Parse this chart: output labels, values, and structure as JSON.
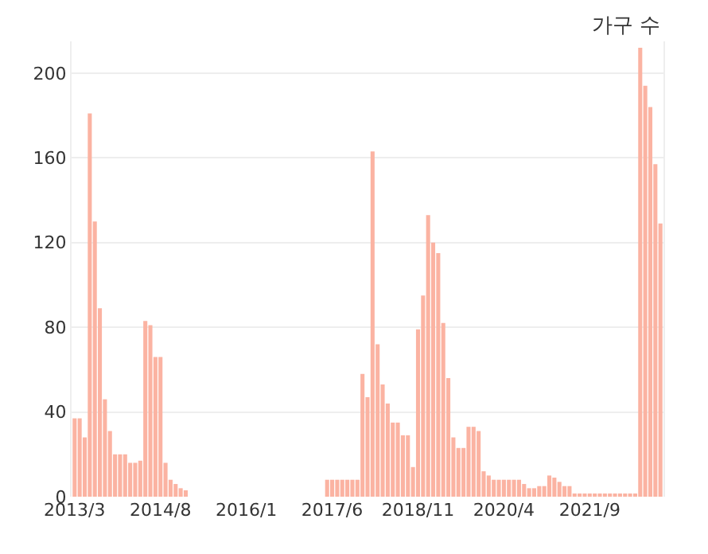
{
  "chart_data": {
    "type": "bar",
    "ylabel": "가구 수",
    "categories": [
      "2013/3",
      null,
      null,
      null,
      null,
      null,
      null,
      null,
      null,
      null,
      null,
      null,
      null,
      null,
      null,
      null,
      null,
      "2014/8",
      null,
      null,
      null,
      null,
      null,
      null,
      null,
      null,
      null,
      null,
      null,
      null,
      null,
      null,
      null,
      null,
      "2016/1",
      null,
      null,
      null,
      null,
      null,
      null,
      null,
      null,
      null,
      null,
      null,
      null,
      null,
      null,
      null,
      null,
      "2017/6",
      null,
      null,
      null,
      null,
      null,
      null,
      null,
      null,
      null,
      null,
      null,
      null,
      null,
      null,
      null,
      null,
      "2018/11",
      null,
      null,
      null,
      null,
      null,
      null,
      null,
      null,
      null,
      null,
      null,
      null,
      null,
      null,
      null,
      null,
      "2020/4",
      null,
      null,
      null,
      null,
      null,
      null,
      null,
      null,
      null,
      null,
      null,
      null,
      null,
      null,
      null,
      null,
      "2021/9",
      null,
      null,
      null,
      null,
      null,
      null,
      null,
      null,
      null,
      null,
      null,
      null,
      null,
      null
    ],
    "values": [
      37,
      37,
      28,
      181,
      130,
      89,
      46,
      31,
      20,
      20,
      20,
      16,
      16,
      17,
      83,
      81,
      66,
      66,
      16,
      8,
      6,
      4,
      3,
      0,
      0,
      0,
      0,
      0,
      0,
      0,
      0,
      0,
      0,
      0,
      0,
      0,
      0,
      0,
      0,
      0,
      0,
      0,
      0,
      0,
      0,
      0,
      0,
      0,
      0,
      0,
      8,
      8,
      8,
      8,
      8,
      8,
      8,
      58,
      47,
      163,
      72,
      53,
      44,
      35,
      35,
      29,
      29,
      14,
      79,
      95,
      133,
      120,
      115,
      82,
      56,
      28,
      23,
      23,
      33,
      33,
      31,
      12,
      10,
      8,
      8,
      8,
      8,
      8,
      8,
      6,
      4,
      4,
      5,
      5,
      10,
      9,
      7,
      5,
      5,
      1,
      1,
      1,
      1,
      1,
      1,
      1,
      1,
      1,
      1,
      1,
      1,
      1,
      212,
      194,
      184,
      157,
      129
    ],
    "color": "#fbb3a2",
    "ylim": [
      0,
      215
    ],
    "yticks": [
      0,
      40,
      80,
      120,
      160,
      200
    ],
    "grid": "y"
  }
}
